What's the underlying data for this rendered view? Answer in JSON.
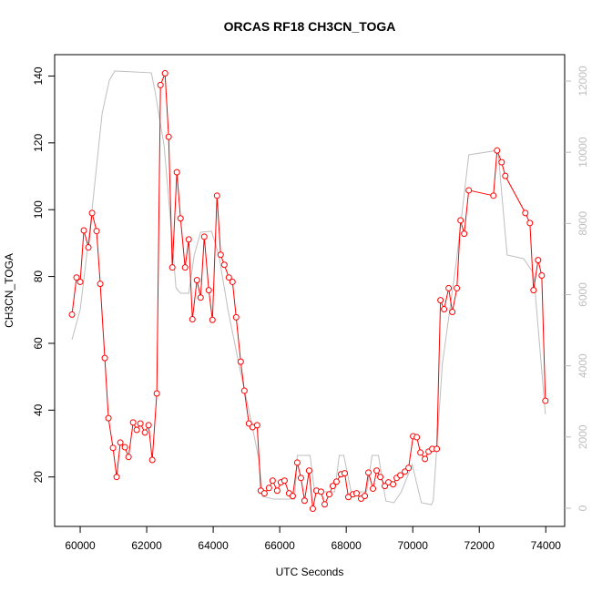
{
  "chart_data": {
    "type": "line",
    "title": "ORCAS RF18 CH3CN_TOGA",
    "x_label": "UTC Seconds",
    "y_label": "CH3CN_TOGA",
    "xlim": [
      59232,
      74568
    ],
    "xticks": [
      60000,
      62000,
      64000,
      66000,
      68000,
      70000,
      72000,
      74000
    ],
    "ylim": [
      5.2,
      146.4
    ],
    "yticks": [
      20,
      40,
      60,
      80,
      100,
      120,
      140
    ],
    "y2lim": [
      -512,
      12742
    ],
    "y2ticks": [
      0,
      2000,
      4000,
      6000,
      8000,
      10000,
      12000
    ],
    "y2color": "#bebebe",
    "grid": false,
    "series": [
      {
        "color": "#ff0000",
        "marker": "circle",
        "x": [
          59753,
          59890,
          60000,
          60110,
          60247,
          60357,
          60494,
          60603,
          60740,
          60850,
          60987,
          61097,
          61207,
          61344,
          61454,
          61591,
          61700,
          61810,
          61947,
          62057,
          62167,
          62304,
          62414,
          62551,
          62660,
          62770,
          62907,
          63017,
          63154,
          63264,
          63374,
          63511,
          63621,
          63731,
          63867,
          63977,
          64114,
          64224,
          64334,
          64471,
          64580,
          64690,
          64827,
          64937,
          65074,
          65184,
          65321,
          65431,
          65540,
          65677,
          65787,
          65924,
          66034,
          66144,
          66281,
          66391,
          66528,
          66638,
          66747,
          66884,
          66994,
          67104,
          67241,
          67351,
          67488,
          67597,
          67707,
          67844,
          67954,
          68064,
          68201,
          68310,
          68447,
          68557,
          68667,
          68804,
          68914,
          69024,
          69161,
          69270,
          69408,
          69517,
          69627,
          69764,
          69874,
          70011,
          70121,
          70230,
          70367,
          70477,
          70587,
          70724,
          70834,
          70943,
          71080,
          71190,
          71327,
          71437,
          71547,
          71684,
          72425,
          72535,
          72672,
          72782,
          73385,
          73522,
          73632,
          73769,
          73879,
          73988
        ],
        "values": [
          68.6,
          79.7,
          78.4,
          93.8,
          88.7,
          99.0,
          93.6,
          77.8,
          55.6,
          37.6,
          28.7,
          20.0,
          30.3,
          28.9,
          26.0,
          36.3,
          34.1,
          36.0,
          33.3,
          35.5,
          25.1,
          45.0,
          137.3,
          140.8,
          121.8,
          82.7,
          111.2,
          97.4,
          82.7,
          91.1,
          67.2,
          78.9,
          73.7,
          91.9,
          75.9,
          67.0,
          104.2,
          86.5,
          83.5,
          79.7,
          78.4,
          67.8,
          54.5,
          45.8,
          36.0,
          34.9,
          35.5,
          15.9,
          15.1,
          16.7,
          18.9,
          15.9,
          18.4,
          18.9,
          15.1,
          14.3,
          24.3,
          19.7,
          12.9,
          21.9,
          10.5,
          15.9,
          15.6,
          11.8,
          14.8,
          17.3,
          18.6,
          20.8,
          21.1,
          14.0,
          14.8,
          15.1,
          13.5,
          14.3,
          21.3,
          16.5,
          21.9,
          20.0,
          17.3,
          18.4,
          17.8,
          19.7,
          20.5,
          21.6,
          22.7,
          32.2,
          31.9,
          27.3,
          25.4,
          27.6,
          28.4,
          28.4,
          72.9,
          70.2,
          76.5,
          69.4,
          76.5,
          96.8,
          92.8,
          105.8,
          104.2,
          117.7,
          114.2,
          110.1,
          99.0,
          96.0,
          75.9,
          84.9,
          80.3,
          42.8
        ]
      },
      {
        "color": "#bebebe",
        "axis": "y2",
        "x": [
          59753,
          60000,
          60329,
          60658,
          60878,
          61042,
          62139,
          62249,
          62523,
          62688,
          62880,
          63017,
          63264,
          63429,
          63621,
          63950,
          64169,
          64443,
          64773,
          65129,
          65376,
          65486,
          65815,
          66446,
          66528,
          66912,
          67049,
          67652,
          67790,
          67927,
          68146,
          68613,
          68777,
          68969,
          69189,
          69436,
          69655,
          69984,
          70259,
          70561,
          70615,
          70890,
          71301,
          71685,
          72563,
          72837,
          73331,
          73633,
          73989
        ],
        "values": [
          4734,
          5578,
          8137,
          11080,
          12027,
          12283,
          12232,
          11720,
          10184,
          8393,
          6192,
          6039,
          6039,
          7114,
          7753,
          7779,
          7114,
          5578,
          4043,
          2508,
          1356,
          333,
          256,
          256,
          1484,
          1484,
          461,
          461,
          1484,
          1484,
          461,
          461,
          1484,
          1484,
          205,
          154,
          461,
          1228,
          154,
          102,
          205,
          4043,
          6858,
          9928,
          10056,
          7114,
          7011,
          6602,
          2636
        ]
      }
    ]
  }
}
